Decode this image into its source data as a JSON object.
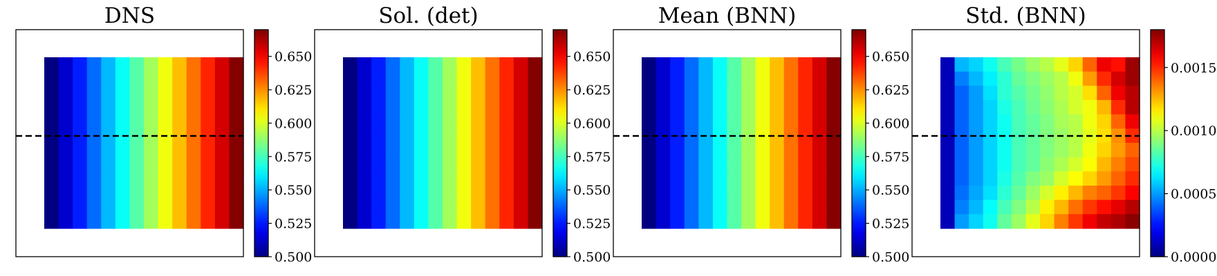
{
  "chart_data": [
    {
      "type": "heatmap",
      "title": "DNS",
      "colorbar": {
        "range": [
          0.5,
          0.67
        ],
        "ticks": [
          "0.500",
          "0.525",
          "0.550",
          "0.575",
          "0.600",
          "0.625",
          "0.650"
        ],
        "colormap": "jet"
      },
      "rows": 12,
      "columns": 14,
      "column_values": [
        0.5,
        0.513,
        0.526,
        0.539,
        0.552,
        0.565,
        0.578,
        0.591,
        0.604,
        0.617,
        0.63,
        0.643,
        0.656,
        0.669
      ],
      "dashed_line": true
    },
    {
      "type": "heatmap",
      "title": "Sol. (det)",
      "colorbar": {
        "range": [
          0.5,
          0.67
        ],
        "ticks": [
          "0.500",
          "0.525",
          "0.550",
          "0.575",
          "0.600",
          "0.625",
          "0.650"
        ],
        "colormap": "jet"
      },
      "rows": 12,
      "columns": 14,
      "column_values": [
        0.5,
        0.513,
        0.526,
        0.539,
        0.552,
        0.565,
        0.578,
        0.591,
        0.604,
        0.617,
        0.63,
        0.643,
        0.656,
        0.669
      ],
      "dashed_line": false
    },
    {
      "type": "heatmap",
      "title": "Mean (BNN)",
      "colorbar": {
        "range": [
          0.5,
          0.67
        ],
        "ticks": [
          "0.500",
          "0.525",
          "0.550",
          "0.575",
          "0.600",
          "0.625",
          "0.650"
        ],
        "colormap": "jet"
      },
      "rows": 12,
      "columns": 14,
      "column_values": [
        0.5,
        0.513,
        0.526,
        0.539,
        0.552,
        0.565,
        0.578,
        0.591,
        0.604,
        0.617,
        0.63,
        0.643,
        0.656,
        0.669
      ],
      "dashed_line": true
    },
    {
      "type": "heatmap",
      "title": "Std. (BNN)",
      "colorbar": {
        "range": [
          0,
          0.0018
        ],
        "ticks": [
          "0.0000",
          "0.0005",
          "0.0010",
          "0.0015"
        ],
        "colormap": "jet"
      },
      "rows": 12,
      "columns": 14,
      "values": [
        [
          0.0001,
          0.00055,
          0.0006,
          0.0007,
          0.0008,
          0.00088,
          0.00095,
          0.001,
          0.00108,
          0.0012,
          0.0014,
          0.0016,
          0.00155,
          0.00175
        ],
        [
          0.0001,
          0.00045,
          0.00055,
          0.00065,
          0.00075,
          0.00085,
          0.0009,
          0.00095,
          0.001,
          0.0011,
          0.0013,
          0.0015,
          0.00165,
          0.00175
        ],
        [
          0.0001,
          0.0004,
          0.0005,
          0.00062,
          0.00075,
          0.00082,
          0.00088,
          0.00093,
          0.001,
          0.00105,
          0.00118,
          0.0014,
          0.0016,
          0.0017
        ],
        [
          0.0001,
          0.0004,
          0.0005,
          0.0006,
          0.00072,
          0.0008,
          0.00087,
          0.00092,
          0.00098,
          0.00105,
          0.0011,
          0.00125,
          0.0015,
          0.0017
        ],
        [
          0.0001,
          0.0004,
          0.0005,
          0.0006,
          0.0007,
          0.0008,
          0.00085,
          0.0009,
          0.00097,
          0.001,
          0.0011,
          0.0012,
          0.0014,
          0.0016
        ],
        [
          0.0001,
          0.0004,
          0.0005,
          0.0006,
          0.0007,
          0.0008,
          0.00085,
          0.0009,
          0.00095,
          0.001,
          0.00108,
          0.00118,
          0.00132,
          0.0015
        ],
        [
          0.0001,
          0.0004,
          0.0005,
          0.0006,
          0.0007,
          0.0008,
          0.00085,
          0.0009,
          0.00095,
          0.001,
          0.0011,
          0.0012,
          0.0013,
          0.0014
        ],
        [
          0.0001,
          0.0004,
          0.0005,
          0.0006,
          0.0007,
          0.0008,
          0.00085,
          0.00092,
          0.00098,
          0.00105,
          0.00112,
          0.00125,
          0.00135,
          0.00145
        ],
        [
          0.0001,
          0.0004,
          0.0005,
          0.0006,
          0.00072,
          0.00082,
          0.0009,
          0.00095,
          0.00105,
          0.00112,
          0.0012,
          0.0013,
          0.0014,
          0.0015
        ],
        [
          0.0001,
          0.00042,
          0.00052,
          0.00062,
          0.00075,
          0.00085,
          0.00095,
          0.00105,
          0.00115,
          0.00125,
          0.00135,
          0.0014,
          0.00148,
          0.00158
        ],
        [
          0.0001,
          0.00045,
          0.00055,
          0.00068,
          0.0008,
          0.0009,
          0.001,
          0.00115,
          0.00125,
          0.00138,
          0.00148,
          0.00155,
          0.00162,
          0.0017
        ],
        [
          0.0001,
          0.0005,
          0.0006,
          0.0007,
          0.00085,
          0.00095,
          0.00108,
          0.0012,
          0.00135,
          0.00148,
          0.0016,
          0.00168,
          0.00172,
          0.00178
        ]
      ],
      "dashed_line": true
    }
  ]
}
